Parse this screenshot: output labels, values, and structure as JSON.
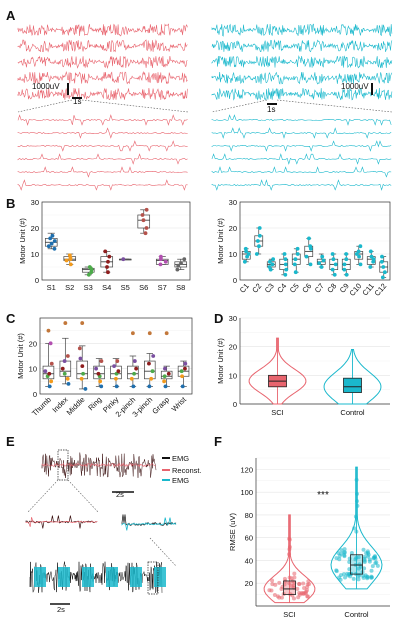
{
  "colors": {
    "sci": "#e8646e",
    "control": "#1ab8cc",
    "black": "#111111",
    "reconst": "#e8646e",
    "grid": "#e4e4e4",
    "subjects": [
      "#1f6fae",
      "#f29a1c",
      "#4daa4a",
      "#8e1d1d",
      "#7a4fa0",
      "#b5524b",
      "#b24fb0",
      "#666666"
    ]
  },
  "panel_labels": [
    "A",
    "B",
    "C",
    "D",
    "E",
    "F"
  ],
  "panelA": {
    "scale_left": "1000uV",
    "scale_right": "1000uV",
    "time_left": "1s",
    "time_right": "1s",
    "trace_rows": 5,
    "zoom_rows": 6
  },
  "panelE": {
    "legend": [
      "EMG",
      "Reconst.",
      "EMG"
    ],
    "time_top": "2s",
    "time_bottom": "2s"
  },
  "chart_data": [
    {
      "panel": "B-left",
      "type": "box",
      "ylabel": "Motor Unit (#)",
      "ylim": [
        0,
        30
      ],
      "yticks": [
        0,
        10,
        20,
        30
      ],
      "categories": [
        "S1",
        "S2",
        "S3",
        "S4",
        "S5",
        "S6",
        "S7",
        "S8"
      ],
      "boxes": [
        {
          "q1": 13,
          "median": 14.5,
          "q3": 16,
          "min": 12,
          "max": 18,
          "points": [
            12,
            13,
            14,
            15,
            16,
            17
          ]
        },
        {
          "q1": 7.5,
          "median": 8,
          "q3": 9,
          "min": 6,
          "max": 10,
          "points": [
            6,
            7.5,
            8,
            8.5,
            9.5
          ]
        },
        {
          "q1": 3,
          "median": 4,
          "q3": 4.5,
          "min": 2,
          "max": 5,
          "points": [
            2,
            3,
            4,
            4.5,
            5
          ]
        },
        {
          "q1": 5,
          "median": 7,
          "q3": 9,
          "min": 3,
          "max": 11,
          "points": [
            3,
            5,
            7,
            9,
            11
          ]
        },
        {
          "q1": 8,
          "median": 8,
          "q3": 8,
          "min": 8,
          "max": 8,
          "points": [
            8
          ]
        },
        {
          "q1": 20,
          "median": 23,
          "q3": 25,
          "min": 18,
          "max": 27,
          "points": [
            18,
            20,
            23,
            25,
            27
          ]
        },
        {
          "q1": 6,
          "median": 7.5,
          "q3": 8,
          "min": 6,
          "max": 9,
          "points": [
            6,
            7,
            8,
            9
          ]
        },
        {
          "q1": 5,
          "median": 6,
          "q3": 7,
          "min": 4,
          "max": 8,
          "points": [
            4,
            5.5,
            6.5,
            8
          ]
        }
      ]
    },
    {
      "panel": "B-right",
      "type": "box",
      "ylabel": "Motor Unit (#)",
      "ylim": [
        0,
        30
      ],
      "yticks": [
        0,
        10,
        20,
        30
      ],
      "categories": [
        "C1",
        "C2",
        "C3",
        "C4",
        "C5",
        "C6",
        "C7",
        "C8",
        "C9",
        "C10",
        "C11",
        "C12"
      ],
      "boxes": [
        {
          "q1": 8,
          "median": 10,
          "q3": 11,
          "min": 7,
          "max": 12,
          "points": [
            7,
            9,
            10,
            11,
            12
          ]
        },
        {
          "q1": 13,
          "median": 15,
          "q3": 17,
          "min": 10,
          "max": 20,
          "points": [
            10,
            13,
            15,
            17,
            20
          ]
        },
        {
          "q1": 5,
          "median": 6,
          "q3": 7,
          "min": 4,
          "max": 8,
          "points": [
            4,
            5,
            6,
            7,
            8
          ]
        },
        {
          "q1": 4,
          "median": 6,
          "q3": 8,
          "min": 2,
          "max": 10,
          "points": [
            2,
            4,
            6,
            8,
            10
          ]
        },
        {
          "q1": 6,
          "median": 8,
          "q3": 10,
          "min": 3,
          "max": 12,
          "points": [
            3,
            6,
            8,
            10,
            12
          ]
        },
        {
          "q1": 9,
          "median": 11,
          "q3": 13,
          "min": 6,
          "max": 16,
          "points": [
            6,
            9,
            12,
            13,
            16
          ]
        },
        {
          "q1": 6,
          "median": 7,
          "q3": 8,
          "min": 5,
          "max": 10,
          "points": [
            5,
            6.5,
            7.5,
            9
          ]
        },
        {
          "q1": 4,
          "median": 6,
          "q3": 8,
          "min": 2,
          "max": 10,
          "points": [
            2,
            4,
            6,
            8,
            10
          ]
        },
        {
          "q1": 4,
          "median": 6,
          "q3": 8,
          "min": 2,
          "max": 10,
          "points": [
            2,
            4,
            6,
            8,
            10
          ]
        },
        {
          "q1": 8,
          "median": 10,
          "q3": 11,
          "min": 6,
          "max": 13,
          "points": [
            6,
            9,
            10,
            11,
            13
          ]
        },
        {
          "q1": 6,
          "median": 8,
          "q3": 9,
          "min": 5,
          "max": 11,
          "points": [
            5,
            7,
            8,
            9,
            11
          ]
        },
        {
          "q1": 3,
          "median": 5,
          "q3": 7,
          "min": 1,
          "max": 9,
          "points": [
            1,
            3,
            5,
            7,
            9
          ]
        }
      ]
    },
    {
      "panel": "C",
      "type": "box",
      "ylabel": "Motor Unit (#)",
      "ylim": [
        0,
        30
      ],
      "yticks": [
        0,
        10,
        20
      ],
      "categories": [
        "Thumb",
        "Index",
        "Middle",
        "Ring",
        "Pinky",
        "2-pinch",
        "3-pinch",
        "Grasp",
        "Wrist"
      ],
      "boxes": [
        {
          "q1": 6,
          "median": 8,
          "q3": 11,
          "min": 3,
          "max": 20,
          "points": [
            3,
            5,
            7,
            8,
            9,
            12,
            20
          ]
        },
        {
          "q1": 7,
          "median": 9,
          "q3": 13,
          "min": 4,
          "max": 22,
          "points": [
            4,
            6,
            8,
            10,
            13,
            15
          ]
        },
        {
          "q1": 6,
          "median": 8,
          "q3": 13,
          "min": 2,
          "max": 19,
          "points": [
            2,
            6,
            8,
            11,
            14,
            18
          ]
        },
        {
          "q1": 6,
          "median": 8,
          "q3": 11,
          "min": 3,
          "max": 14,
          "points": [
            3,
            5,
            7,
            8,
            10,
            13
          ]
        },
        {
          "q1": 6,
          "median": 8,
          "q3": 11,
          "min": 3,
          "max": 14,
          "points": [
            3,
            6,
            8,
            9,
            11,
            13
          ]
        },
        {
          "q1": 6,
          "median": 8,
          "q3": 11,
          "min": 3,
          "max": 15,
          "points": [
            3,
            6,
            8,
            10,
            13
          ]
        },
        {
          "q1": 6,
          "median": 9,
          "q3": 13,
          "min": 3,
          "max": 16,
          "points": [
            3,
            6,
            9,
            12,
            15
          ]
        },
        {
          "q1": 6,
          "median": 7,
          "q3": 9,
          "min": 3,
          "max": 11,
          "points": [
            3,
            5,
            7,
            8,
            10
          ]
        },
        {
          "q1": 7,
          "median": 9,
          "q3": 11,
          "min": 3,
          "max": 13,
          "points": [
            3,
            7,
            9,
            10,
            12
          ]
        }
      ],
      "outliers": [
        {
          "category": "Thumb",
          "value": 25
        },
        {
          "category": "Index",
          "value": 28
        },
        {
          "category": "Middle",
          "value": 28
        },
        {
          "category": "2-pinch",
          "value": 24
        },
        {
          "category": "3-pinch",
          "value": 24
        },
        {
          "category": "Grasp",
          "value": 24
        }
      ]
    },
    {
      "panel": "D",
      "type": "violin",
      "ylabel": "Motor Unit (#)",
      "ylim": [
        0,
        30
      ],
      "yticks": [
        0,
        10,
        20,
        30
      ],
      "categories": [
        "SCI",
        "Control"
      ],
      "boxes": [
        {
          "q1": 6,
          "median": 8,
          "q3": 10,
          "min": 0,
          "max": 23
        },
        {
          "q1": 4,
          "median": 6,
          "q3": 9,
          "min": 0,
          "max": 19
        }
      ]
    },
    {
      "panel": "F",
      "type": "violin",
      "ylabel": "RMSE (uV)",
      "ylim": [
        0,
        130
      ],
      "yticks": [
        20,
        40,
        60,
        80,
        100,
        120
      ],
      "categories": [
        "SCI",
        "Control"
      ],
      "boxes": [
        {
          "q1": 10,
          "median": 15,
          "q3": 22,
          "min": 3,
          "max": 80
        },
        {
          "q1": 28,
          "median": 36,
          "q3": 45,
          "min": 15,
          "max": 122
        }
      ],
      "annotation": "***"
    }
  ]
}
